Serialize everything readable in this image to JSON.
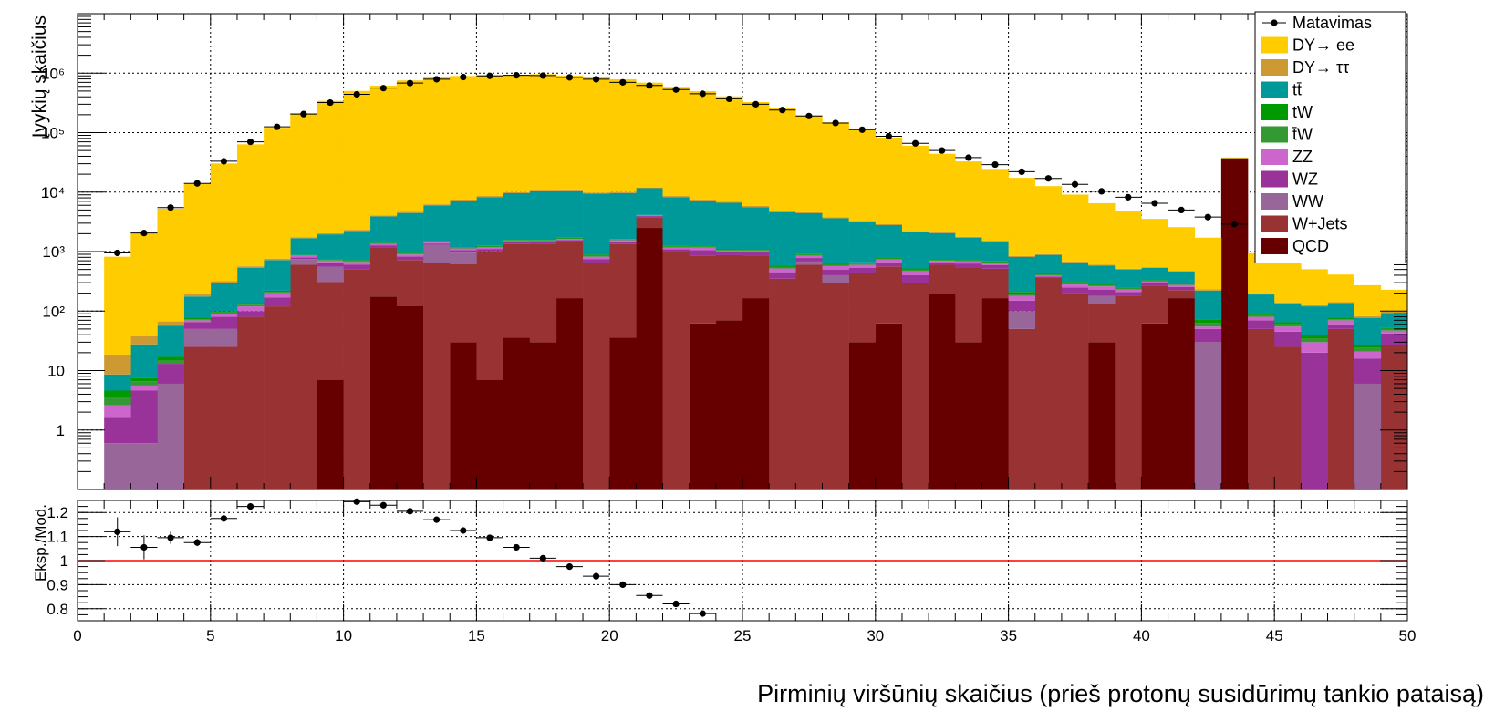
{
  "chart_data": [
    {
      "type": "stacked-histogram",
      "ylabel": "Įvykių skaičius",
      "ylog": true,
      "ylim": [
        0.1,
        10000000
      ],
      "xlim": [
        0,
        50
      ],
      "yticks": [
        {
          "v": 1,
          "label": "1"
        },
        {
          "v": 10,
          "label": "10"
        },
        {
          "v": 100,
          "label": "10²"
        },
        {
          "v": 1000,
          "label": "10³"
        },
        {
          "v": 10000,
          "label": "10⁴"
        },
        {
          "v": 100000,
          "label": "10⁵"
        },
        {
          "v": 1000000,
          "label": "10⁶"
        }
      ],
      "grid": true,
      "legend_position": "top-right",
      "bins": {
        "start": 1,
        "width": 1,
        "count": 49
      },
      "series": [
        {
          "name": "QCD",
          "color": "#660000",
          "values": [
            0,
            0,
            0,
            0,
            0,
            0,
            0,
            0,
            7,
            0,
            175,
            122,
            0,
            30,
            7,
            36,
            30,
            165,
            0,
            36,
            2500,
            0,
            62,
            70,
            165,
            0,
            0,
            0,
            30,
            62,
            0,
            200,
            30,
            165,
            0,
            0,
            0,
            30,
            0,
            62,
            165,
            0,
            37000,
            0,
            0,
            0,
            0,
            0,
            0
          ]
        },
        {
          "name": "W+Jets",
          "color": "#993333",
          "values": [
            0,
            0,
            0,
            25,
            25,
            80,
            120,
            600,
            300,
            500,
            1000,
            600,
            650,
            580,
            1000,
            1300,
            1300,
            1300,
            650,
            1300,
            1300,
            1000,
            800,
            800,
            700,
            350,
            600,
            300,
            400,
            500,
            300,
            400,
            500,
            350,
            50,
            360,
            200,
            100,
            180,
            200,
            60,
            0,
            0,
            50,
            25,
            0,
            50,
            0,
            27
          ]
        },
        {
          "name": "WW",
          "color": "#996699",
          "values": [
            0.6,
            0.6,
            6,
            25,
            25,
            0,
            0,
            150,
            250,
            0,
            0,
            0,
            650,
            350,
            0,
            0,
            0,
            0,
            0,
            0,
            0,
            0,
            0,
            0,
            0,
            0,
            80,
            100,
            0,
            0,
            0,
            0,
            0,
            0,
            50,
            0,
            0,
            50,
            0,
            0,
            0,
            30,
            0,
            0,
            0,
            0,
            0,
            6,
            0
          ]
        },
        {
          "name": "WZ",
          "color": "#993399",
          "values": [
            1,
            4,
            7,
            15,
            30,
            20,
            50,
            50,
            100,
            100,
            100,
            100,
            50,
            100,
            100,
            100,
            100,
            100,
            100,
            150,
            150,
            100,
            200,
            100,
            100,
            100,
            100,
            100,
            100,
            100,
            100,
            50,
            100,
            80,
            50,
            20,
            50,
            50,
            30,
            30,
            30,
            20,
            0,
            20,
            20,
            20,
            10,
            10,
            15
          ]
        },
        {
          "name": "ZZ",
          "color": "#cc66cc",
          "values": [
            1,
            1,
            0,
            5,
            10,
            20,
            30,
            50,
            50,
            70,
            70,
            70,
            70,
            70,
            70,
            70,
            70,
            70,
            70,
            70,
            100,
            70,
            100,
            70,
            70,
            70,
            70,
            70,
            70,
            70,
            70,
            50,
            50,
            50,
            30,
            20,
            30,
            30,
            20,
            20,
            20,
            5,
            0,
            10,
            10,
            10,
            10,
            5,
            5
          ]
        },
        {
          "name": "t̄W",
          "color": "#339933",
          "values": [
            1,
            1,
            2,
            3,
            5,
            8,
            10,
            15,
            20,
            25,
            30,
            30,
            30,
            30,
            35,
            35,
            35,
            35,
            35,
            35,
            35,
            35,
            35,
            35,
            30,
            30,
            30,
            30,
            30,
            25,
            25,
            20,
            20,
            20,
            15,
            15,
            15,
            10,
            10,
            10,
            10,
            8,
            5,
            5,
            5,
            5,
            3,
            3,
            3
          ]
        },
        {
          "name": "tW",
          "color": "#009900",
          "values": [
            1,
            1,
            2,
            3,
            5,
            8,
            10,
            15,
            20,
            25,
            30,
            30,
            30,
            30,
            35,
            35,
            35,
            35,
            35,
            35,
            35,
            35,
            35,
            35,
            30,
            30,
            30,
            30,
            30,
            25,
            25,
            20,
            20,
            20,
            15,
            15,
            15,
            10,
            10,
            10,
            10,
            8,
            5,
            5,
            5,
            5,
            3,
            3,
            3
          ]
        },
        {
          "name": "tt̄",
          "color": "#009999",
          "values": [
            4,
            20,
            40,
            100,
            200,
            400,
            500,
            800,
            1200,
            1500,
            2500,
            3500,
            4500,
            6000,
            7000,
            8000,
            9000,
            9000,
            8500,
            8000,
            7500,
            7000,
            6000,
            5500,
            4500,
            4000,
            3500,
            3000,
            2500,
            2000,
            1600,
            1300,
            1000,
            800,
            600,
            450,
            350,
            300,
            250,
            200,
            170,
            150,
            100,
            100,
            70,
            80,
            60,
            50,
            40
          ]
        },
        {
          "name": "DY→ ττ",
          "color": "#cc9933",
          "values": [
            10,
            10,
            10,
            20,
            20,
            30,
            40,
            50,
            80,
            100,
            150,
            200,
            250,
            300,
            350,
            400,
            400,
            400,
            400,
            400,
            350,
            350,
            300,
            300,
            250,
            200,
            180,
            150,
            120,
            100,
            80,
            60,
            50,
            40,
            30,
            25,
            20,
            20,
            15,
            15,
            10,
            10,
            10,
            5,
            5,
            5,
            5,
            5,
            5
          ]
        },
        {
          "name": "DY→ ee",
          "color": "#ffcc00",
          "values": [
            800,
            2000,
            5200,
            13500,
            30000,
            63000,
            120000,
            210000,
            340000,
            500000,
            610000,
            750000,
            840000,
            890000,
            920000,
            930000,
            950000,
            900000,
            840000,
            780000,
            680000,
            580000,
            490000,
            400000,
            320000,
            250000,
            190000,
            145000,
            108000,
            80000,
            58000,
            42000,
            31000,
            23000,
            16500,
            11700,
            8400,
            5900,
            4300,
            3000,
            2100,
            1480,
            1040,
            740,
            520,
            380,
            270,
            190,
            130
          ]
        }
      ],
      "data": {
        "name": "Matavimas",
        "color": "#000000",
        "x": [
          1.5,
          2.5,
          3.5,
          4.5,
          5.5,
          6.5,
          7.5,
          8.5,
          9.5,
          10.5,
          11.5,
          12.5,
          13.5,
          14.5,
          15.5,
          16.5,
          17.5,
          18.5,
          19.5,
          20.5,
          21.5,
          22.5,
          23.5,
          24.5,
          25.5,
          26.5,
          27.5,
          28.5,
          29.5,
          30.5,
          31.5,
          32.5,
          33.5,
          34.5,
          35.5,
          36.5,
          37.5,
          38.5,
          39.5,
          40.5,
          41.5,
          42.5,
          43.5
        ],
        "y": [
          950,
          2050,
          5500,
          14000,
          33000,
          70000,
          125000,
          205000,
          320000,
          440000,
          560000,
          680000,
          790000,
          860000,
          900000,
          920000,
          910000,
          850000,
          790000,
          700000,
          620000,
          530000,
          450000,
          370000,
          300000,
          240000,
          190000,
          145000,
          112000,
          87000,
          66000,
          50000,
          38000,
          29000,
          22000,
          17000,
          13500,
          10300,
          8200,
          6500,
          5000,
          3800,
          2900
        ]
      }
    },
    {
      "type": "ratio",
      "ylabel": "Eksp./Mod.",
      "xlabel": "Pirminių viršūnių skaičius (prieš protonų susidūrimų tankio pataisą)",
      "xlim": [
        0,
        50
      ],
      "ylim": [
        0.75,
        1.25
      ],
      "yticks": [
        0.8,
        0.9,
        1,
        1.1,
        1.2
      ],
      "xticks": [
        0,
        5,
        10,
        15,
        20,
        25,
        30,
        35,
        40,
        45,
        50
      ],
      "reference_line": {
        "y": 1,
        "color": "#ff0000"
      },
      "points": {
        "x": [
          1.5,
          2.5,
          3.5,
          4.5,
          5.5,
          6.5,
          10.5,
          11.5,
          12.5,
          13.5,
          14.5,
          15.5,
          16.5,
          17.5,
          18.5,
          19.5,
          20.5,
          21.5,
          22.5,
          23.5
        ],
        "y": [
          1.12,
          1.055,
          1.095,
          1.075,
          1.175,
          1.225,
          1.245,
          1.23,
          1.205,
          1.17,
          1.125,
          1.095,
          1.055,
          1.01,
          0.975,
          0.935,
          0.9,
          0.855,
          0.82,
          0.78
        ],
        "err": [
          0.06,
          0.05,
          0.025,
          0.015,
          0.008,
          0.005,
          0.004,
          0.004,
          0.003,
          0.003,
          0.003,
          0.003,
          0.003,
          0.003,
          0.003,
          0.003,
          0.003,
          0.003,
          0.003,
          0.004
        ]
      }
    }
  ]
}
